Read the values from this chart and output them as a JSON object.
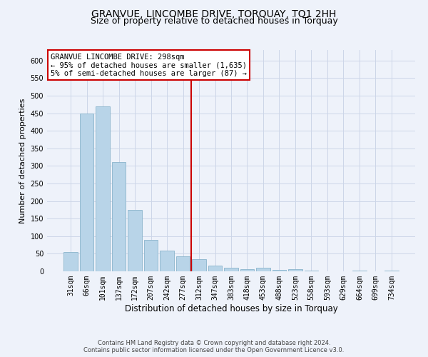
{
  "title": "GRANVUE, LINCOMBE DRIVE, TORQUAY, TQ1 2HH",
  "subtitle": "Size of property relative to detached houses in Torquay",
  "xlabel": "Distribution of detached houses by size in Torquay",
  "ylabel": "Number of detached properties",
  "bar_labels": [
    "31sqm",
    "66sqm",
    "101sqm",
    "137sqm",
    "172sqm",
    "207sqm",
    "242sqm",
    "277sqm",
    "312sqm",
    "347sqm",
    "383sqm",
    "418sqm",
    "453sqm",
    "488sqm",
    "523sqm",
    "558sqm",
    "593sqm",
    "629sqm",
    "664sqm",
    "699sqm",
    "734sqm"
  ],
  "bar_values": [
    55,
    450,
    470,
    310,
    175,
    90,
    58,
    43,
    35,
    16,
    10,
    7,
    10,
    4,
    7,
    2,
    1,
    0,
    3,
    0,
    2
  ],
  "bar_color": "#b8d4e8",
  "bar_edge_color": "#8ab4cc",
  "grid_color": "#ccd6e8",
  "background_color": "#eef2fa",
  "vline_color": "#cc0000",
  "vline_pos": 7.5,
  "ylim": [
    0,
    630
  ],
  "yticks": [
    0,
    50,
    100,
    150,
    200,
    250,
    300,
    350,
    400,
    450,
    500,
    550,
    600
  ],
  "annotation_lines": [
    "GRANVUE LINCOMBE DRIVE: 298sqm",
    "← 95% of detached houses are smaller (1,635)",
    "5% of semi-detached houses are larger (87) →"
  ],
  "footer_text": "Contains HM Land Registry data © Crown copyright and database right 2024.\nContains public sector information licensed under the Open Government Licence v3.0.",
  "title_fontsize": 10,
  "subtitle_fontsize": 9,
  "xlabel_fontsize": 8.5,
  "ylabel_fontsize": 8,
  "tick_fontsize": 7,
  "ann_fontsize": 7.5,
  "footer_fontsize": 6
}
